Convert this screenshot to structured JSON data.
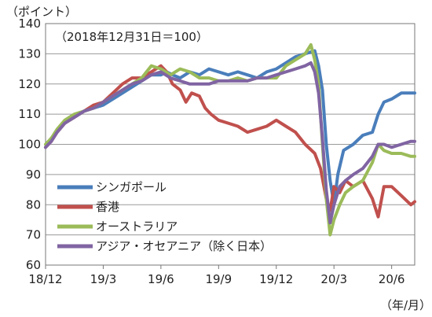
{
  "chart_data": {
    "type": "line",
    "unit_label": "（ポイント）",
    "x_unit_label": "（年/月）",
    "note": "（2018年12月31日＝100）",
    "ylim": [
      60,
      140
    ],
    "y_ticks": [
      60,
      70,
      80,
      90,
      100,
      110,
      120,
      130,
      140
    ],
    "x_ticks": [
      "18/12",
      "19/3",
      "19/6",
      "19/9",
      "19/12",
      "20/3",
      "20/6"
    ],
    "x_tick_pos": [
      0,
      3,
      6,
      9,
      12,
      15,
      18
    ],
    "xlim": [
      0,
      19.2
    ],
    "grid": "horizontal",
    "legend_position": "lower-left",
    "series": [
      {
        "name": "シンガポール",
        "color": "#4a7ebb",
        "points": [
          [
            0,
            99
          ],
          [
            0.3,
            102
          ],
          [
            0.6,
            104
          ],
          [
            1,
            107
          ],
          [
            1.5,
            109
          ],
          [
            2,
            111
          ],
          [
            2.5,
            112
          ],
          [
            3,
            113
          ],
          [
            3.5,
            115
          ],
          [
            4,
            117
          ],
          [
            4.5,
            119
          ],
          [
            5,
            121
          ],
          [
            5.5,
            123
          ],
          [
            6,
            123
          ],
          [
            6.3,
            124
          ],
          [
            6.6,
            123
          ],
          [
            7,
            122
          ],
          [
            7.5,
            124
          ],
          [
            8,
            123
          ],
          [
            8.5,
            125
          ],
          [
            9,
            124
          ],
          [
            9.5,
            123
          ],
          [
            10,
            124
          ],
          [
            10.5,
            123
          ],
          [
            11,
            122
          ],
          [
            11.5,
            124
          ],
          [
            12,
            125
          ],
          [
            12.5,
            127
          ],
          [
            13,
            129
          ],
          [
            13.5,
            130
          ],
          [
            14,
            131
          ],
          [
            14.2,
            126
          ],
          [
            14.4,
            118
          ],
          [
            14.6,
            100
          ],
          [
            14.8,
            88
          ],
          [
            15,
            80
          ],
          [
            15.2,
            90
          ],
          [
            15.5,
            98
          ],
          [
            16,
            100
          ],
          [
            16.5,
            103
          ],
          [
            17,
            104
          ],
          [
            17.3,
            110
          ],
          [
            17.6,
            114
          ],
          [
            18,
            115
          ],
          [
            18.5,
            117
          ],
          [
            19,
            117
          ],
          [
            19.2,
            117
          ]
        ]
      },
      {
        "name": "香港",
        "color": "#c0504d",
        "points": [
          [
            0,
            99
          ],
          [
            0.3,
            101
          ],
          [
            0.6,
            104
          ],
          [
            1,
            107
          ],
          [
            1.5,
            109
          ],
          [
            2,
            111
          ],
          [
            2.5,
            113
          ],
          [
            3,
            114
          ],
          [
            3.5,
            117
          ],
          [
            4,
            120
          ],
          [
            4.5,
            122
          ],
          [
            5,
            122
          ],
          [
            5.5,
            124
          ],
          [
            6,
            126
          ],
          [
            6.3,
            124
          ],
          [
            6.6,
            120
          ],
          [
            7,
            118
          ],
          [
            7.3,
            114
          ],
          [
            7.6,
            117
          ],
          [
            8,
            116
          ],
          [
            8.3,
            112
          ],
          [
            8.6,
            110
          ],
          [
            9,
            108
          ],
          [
            9.5,
            107
          ],
          [
            10,
            106
          ],
          [
            10.5,
            104
          ],
          [
            11,
            105
          ],
          [
            11.5,
            106
          ],
          [
            12,
            108
          ],
          [
            12.5,
            106
          ],
          [
            13,
            104
          ],
          [
            13.5,
            100
          ],
          [
            14,
            97
          ],
          [
            14.3,
            92
          ],
          [
            14.6,
            82
          ],
          [
            14.8,
            78
          ],
          [
            15,
            86
          ],
          [
            15.3,
            84
          ],
          [
            15.6,
            88
          ],
          [
            16,
            86
          ],
          [
            16.5,
            88
          ],
          [
            17,
            82
          ],
          [
            17.3,
            76
          ],
          [
            17.6,
            86
          ],
          [
            18,
            86
          ],
          [
            18.5,
            83
          ],
          [
            19,
            80
          ],
          [
            19.2,
            81
          ]
        ]
      },
      {
        "name": "オーストラリア",
        "color": "#9bbb59",
        "points": [
          [
            0,
            100
          ],
          [
            0.3,
            102
          ],
          [
            0.6,
            105
          ],
          [
            1,
            108
          ],
          [
            1.5,
            110
          ],
          [
            2,
            111
          ],
          [
            2.5,
            112
          ],
          [
            3,
            114
          ],
          [
            3.5,
            116
          ],
          [
            4,
            118
          ],
          [
            4.5,
            120
          ],
          [
            5,
            122
          ],
          [
            5.5,
            126
          ],
          [
            6,
            125
          ],
          [
            6.5,
            123
          ],
          [
            7,
            125
          ],
          [
            7.5,
            124
          ],
          [
            8,
            122
          ],
          [
            8.5,
            122
          ],
          [
            9,
            121
          ],
          [
            9.5,
            121
          ],
          [
            10,
            122
          ],
          [
            10.5,
            121
          ],
          [
            11,
            122
          ],
          [
            11.5,
            122
          ],
          [
            12,
            122
          ],
          [
            12.5,
            126
          ],
          [
            13,
            128
          ],
          [
            13.5,
            130
          ],
          [
            13.8,
            133
          ],
          [
            14,
            128
          ],
          [
            14.2,
            120
          ],
          [
            14.4,
            100
          ],
          [
            14.6,
            82
          ],
          [
            14.8,
            70
          ],
          [
            15,
            75
          ],
          [
            15.3,
            80
          ],
          [
            15.6,
            84
          ],
          [
            16,
            86
          ],
          [
            16.5,
            88
          ],
          [
            17,
            94
          ],
          [
            17.3,
            100
          ],
          [
            17.6,
            98
          ],
          [
            18,
            97
          ],
          [
            18.5,
            97
          ],
          [
            19,
            96
          ],
          [
            19.2,
            96
          ]
        ]
      },
      {
        "name": "アジア・オセアニア（除く日本）",
        "color": "#8064a2",
        "points": [
          [
            0,
            99
          ],
          [
            0.3,
            101
          ],
          [
            0.6,
            104
          ],
          [
            1,
            107
          ],
          [
            1.5,
            109
          ],
          [
            2,
            111
          ],
          [
            2.5,
            112
          ],
          [
            3,
            114
          ],
          [
            3.5,
            116
          ],
          [
            4,
            118
          ],
          [
            4.5,
            120
          ],
          [
            5,
            121
          ],
          [
            5.5,
            123
          ],
          [
            6,
            124
          ],
          [
            6.5,
            122
          ],
          [
            7,
            121
          ],
          [
            7.5,
            120
          ],
          [
            8,
            120
          ],
          [
            8.5,
            120
          ],
          [
            9,
            121
          ],
          [
            9.5,
            121
          ],
          [
            10,
            121
          ],
          [
            10.5,
            121
          ],
          [
            11,
            122
          ],
          [
            11.5,
            122
          ],
          [
            12,
            123
          ],
          [
            12.5,
            124
          ],
          [
            13,
            125
          ],
          [
            13.5,
            126
          ],
          [
            13.8,
            127
          ],
          [
            14,
            124
          ],
          [
            14.2,
            117
          ],
          [
            14.4,
            102
          ],
          [
            14.6,
            85
          ],
          [
            14.8,
            74
          ],
          [
            15,
            80
          ],
          [
            15.3,
            86
          ],
          [
            15.6,
            88
          ],
          [
            16,
            90
          ],
          [
            16.5,
            92
          ],
          [
            17,
            96
          ],
          [
            17.3,
            100
          ],
          [
            17.6,
            100
          ],
          [
            18,
            99
          ],
          [
            18.5,
            100
          ],
          [
            19,
            101
          ],
          [
            19.2,
            101
          ]
        ]
      }
    ]
  }
}
